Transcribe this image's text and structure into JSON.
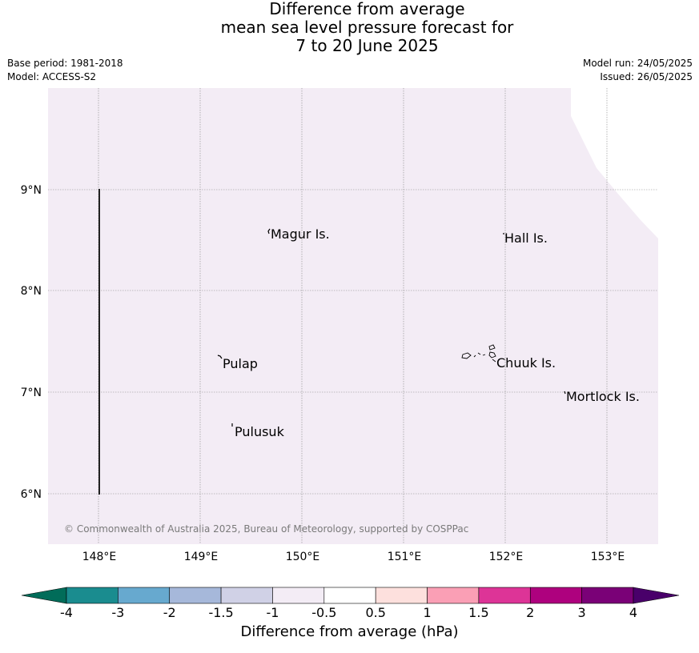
{
  "title": {
    "line1": "Difference from average",
    "line2": "mean sea level pressure forecast for",
    "line3": "7 to 20 June 2025"
  },
  "meta": {
    "base_period": "Base period: 1981-2018",
    "model": "Model: ACCESS-S2",
    "model_run": "Model run: 24/05/2025",
    "issued": "Issued: 26/05/2025"
  },
  "map": {
    "fill_color": "#f3ecf5",
    "lon_ticks": [
      "148°E",
      "149°E",
      "150°E",
      "151°E",
      "152°E",
      "153°E"
    ],
    "lat_ticks": [
      "9°N",
      "8°N",
      "7°N",
      "6°N"
    ],
    "places": [
      {
        "name": "Magur Is."
      },
      {
        "name": "Hall Is."
      },
      {
        "name": "Pulap"
      },
      {
        "name": "Chuuk Is."
      },
      {
        "name": "Mortlock Is."
      },
      {
        "name": "Pulusuk"
      }
    ],
    "copyright": "© Commonwealth of Australia 2025, Bureau of Meteorology, supported by COSPPac"
  },
  "colorbar": {
    "label": "Difference from average (hPa)",
    "ticks": [
      "-4",
      "-3",
      "-2",
      "-1.5",
      "-1",
      "-0.5",
      "0.5",
      "1",
      "1.5",
      "2",
      "3",
      "4"
    ],
    "colors": [
      "#1a8c8f",
      "#67a9cf",
      "#a6b8da",
      "#d0d1e6",
      "#f3ecf5",
      "#ffffff",
      "#fde0dd",
      "#fa9fb5",
      "#dd3497",
      "#ae017e",
      "#7a0177"
    ],
    "under_color": "#016c59",
    "over_color": "#49006a"
  }
}
